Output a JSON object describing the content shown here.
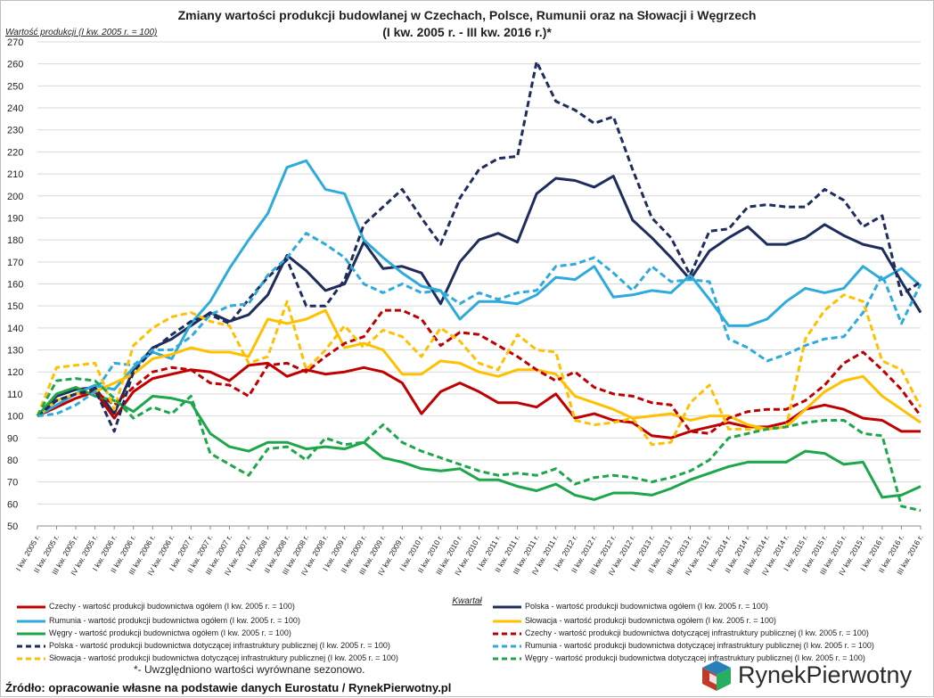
{
  "chart_data": {
    "type": "line",
    "title": "Zmiany wartości produkcji budowlanej w Czechach, Polsce, Rumunii oraz na Słowacji i Węgrzech",
    "subtitle": "(I kw. 2005 r. - III kw. 2016 r.)*",
    "ylabel": "Wartość produkcji (I kw. 2005 r. = 100)",
    "xlabel": "Kwartał",
    "ylim": [
      50,
      270
    ],
    "yticks": [
      50,
      60,
      70,
      80,
      90,
      100,
      110,
      120,
      130,
      140,
      150,
      160,
      170,
      180,
      190,
      200,
      210,
      220,
      230,
      240,
      250,
      260,
      270
    ],
    "grid": true,
    "legend_position": "bottom",
    "categories": [
      "I kw. 2005 r.",
      "II kw. 2005 r.",
      "III kw. 2005 r.",
      "IV kw. 2005 r.",
      "I kw. 2006 r.",
      "II kw. 2006 r.",
      "III kw. 2006 r.",
      "IV kw. 2006 r.",
      "I kw. 2007 r.",
      "II kw. 2007 r.",
      "III kw. 2007 r.",
      "IV kw. 2007 r.",
      "I kw. 2008 r.",
      "II kw. 2008 r.",
      "III kw. 2008 r.",
      "IV kw. 2008 r.",
      "I kw. 2009 r.",
      "II kw. 2009 r.",
      "III kw. 2009 r.",
      "IV kw. 2009 r.",
      "I kw. 2010 r.",
      "II kw. 2010 r.",
      "III kw. 2010 r.",
      "IV kw. 2010 r.",
      "I kw. 2011 r.",
      "II kw. 2011 r.",
      "III kw. 2011 r.",
      "IV kw. 2011 r.",
      "I kw. 2012 r.",
      "II kw. 2012 r.",
      "III kw. 2012 r.",
      "IV kw. 2012 r.",
      "I kw. 2013 r.",
      "II kw. 2013 r.",
      "III kw. 2013 r.",
      "IV kw. 2013 r.",
      "I kw. 2014 r.",
      "II kw. 2014 r.",
      "III kw. 2014 r.",
      "IV kw. 2014 r.",
      "I kw. 2015 r.",
      "II kw. 2015 r.",
      "III kw. 2015 r.",
      "IV kw. 2015 r.",
      "I kw. 2016 r.",
      "II kw. 2016 r.",
      "III kw. 2016 r."
    ],
    "series": [
      {
        "name": "Czechy - wartość produkcji budownictwa ogółem (I kw. 2005 r. = 100)",
        "color": "#c00000",
        "dashed": false,
        "values": [
          100,
          104,
          108,
          111,
          99,
          111,
          117,
          119,
          121,
          120,
          116,
          123,
          124,
          118,
          121,
          119,
          120,
          122,
          120,
          115,
          101,
          111,
          115,
          111,
          106,
          106,
          104,
          110,
          99,
          101,
          98,
          97,
          91,
          90,
          93,
          95,
          97,
          95,
          95,
          97,
          103,
          105,
          103,
          99,
          98,
          93,
          93
        ]
      },
      {
        "name": "Polska - wartość produkcji budownictwa ogółem (I kw. 2005 r. = 100)",
        "color": "#1f2d5c",
        "dashed": false,
        "values": [
          100,
          109,
          112,
          113,
          101,
          121,
          131,
          135,
          141,
          147,
          143,
          146,
          155,
          173,
          166,
          157,
          160,
          179,
          167,
          168,
          165,
          151,
          170,
          180,
          183,
          179,
          201,
          208,
          207,
          204,
          209,
          189,
          181,
          172,
          162,
          175,
          181,
          186,
          178,
          178,
          181,
          187,
          182,
          178,
          176,
          161,
          147
        ]
      },
      {
        "name": "Rumunia - wartość produkcji budownictwa ogółem (I kw. 2005 r. = 100)",
        "color": "#2eaadc",
        "dashed": false,
        "values": [
          100,
          105,
          110,
          114,
          112,
          122,
          129,
          126,
          142,
          152,
          167,
          180,
          192,
          213,
          216,
          203,
          201,
          180,
          172,
          165,
          159,
          157,
          144,
          152,
          152,
          151,
          155,
          163,
          162,
          168,
          154,
          155,
          157,
          156,
          164,
          153,
          141,
          141,
          144,
          152,
          158,
          156,
          158,
          168,
          162,
          167,
          159
        ]
      },
      {
        "name": "Słowacja - wartość produkcji budownictwa ogółem (I kw. 2005 r. = 100)",
        "color": "#ffc000",
        "dashed": false,
        "values": [
          100,
          107,
          110,
          111,
          115,
          119,
          126,
          128,
          131,
          129,
          129,
          127,
          144,
          142,
          144,
          148,
          131,
          133,
          130,
          119,
          119,
          125,
          124,
          120,
          118,
          121,
          121,
          119,
          109,
          106,
          103,
          99,
          100,
          101,
          98,
          100,
          100,
          96,
          94,
          95,
          103,
          111,
          116,
          118,
          109,
          103,
          97
        ]
      },
      {
        "name": "Węgry - wartość produkcji budownictwa ogółem (I kw. 2005 r. = 100)",
        "color": "#1ea64b",
        "dashed": false,
        "values": [
          100,
          110,
          113,
          109,
          107,
          102,
          109,
          108,
          106,
          92,
          86,
          84,
          88,
          88,
          85,
          86,
          85,
          88,
          81,
          79,
          76,
          75,
          76,
          71,
          71,
          68,
          66,
          69,
          64,
          62,
          65,
          65,
          64,
          67,
          71,
          74,
          77,
          79,
          79,
          79,
          84,
          83,
          78,
          79,
          63,
          64,
          68
        ]
      },
      {
        "name": "Czechy - wartość produkcji budownictwa dotyczącej infrastruktury publicznej (I kw. 2005 r. = 100)",
        "color": "#c00000",
        "dashed": true,
        "values": [
          100,
          107,
          110,
          111,
          105,
          113,
          120,
          122,
          121,
          115,
          114,
          109,
          123,
          124,
          120,
          127,
          133,
          136,
          148,
          148,
          144,
          132,
          138,
          137,
          132,
          127,
          121,
          116,
          120,
          113,
          110,
          109,
          106,
          105,
          93,
          92,
          99,
          102,
          103,
          103,
          107,
          114,
          124,
          129,
          121,
          112,
          100
        ]
      },
      {
        "name": "Polska - wartość produkcji budownictwa dotyczącej infrastruktury publicznej (I kw. 2005 r. = 100)",
        "color": "#1f2d5c",
        "dashed": true,
        "values": [
          100,
          107,
          110,
          112,
          93,
          120,
          130,
          137,
          143,
          146,
          142,
          153,
          163,
          171,
          150,
          150,
          162,
          187,
          195,
          203,
          190,
          178,
          199,
          212,
          217,
          218,
          261,
          243,
          239,
          233,
          236,
          212,
          190,
          181,
          164,
          184,
          185,
          195,
          196,
          195,
          195,
          203,
          198,
          186,
          191,
          155,
          161
        ]
      },
      {
        "name": "Rumunia - wartość produkcji budownictwa dotyczącej infrastruktury publicznej (I kw. 2005 r. = 100)",
        "color": "#2eaadc",
        "dashed": true,
        "values": [
          100,
          101,
          105,
          111,
          124,
          123,
          130,
          130,
          136,
          146,
          150,
          151,
          164,
          172,
          183,
          178,
          172,
          160,
          156,
          160,
          156,
          157,
          151,
          156,
          153,
          156,
          157,
          168,
          169,
          172,
          165,
          157,
          168,
          161,
          162,
          161,
          135,
          131,
          125,
          128,
          132,
          135,
          136,
          147,
          164,
          142,
          160
        ]
      },
      {
        "name": "Słowacja - wartość produkcji budownictwa dotyczącej infrastruktury publicznej (I kw. 2005 r. = 100)",
        "color": "#ffc000",
        "dashed": true,
        "values": [
          100,
          122,
          123,
          124,
          103,
          132,
          140,
          145,
          147,
          143,
          141,
          124,
          127,
          152,
          121,
          130,
          141,
          131,
          139,
          136,
          127,
          140,
          134,
          124,
          121,
          137,
          130,
          129,
          98,
          96,
          97,
          99,
          87,
          88,
          106,
          114,
          94,
          94,
          94,
          95,
          135,
          148,
          155,
          152,
          125,
          121,
          104
        ]
      },
      {
        "name": "Węgry - wartość produkcji budownictwa dotyczącej infrastruktury publicznej (I kw. 2005 r. = 100)",
        "color": "#1ea64b",
        "dashed": true,
        "values": [
          100,
          116,
          117,
          116,
          108,
          99,
          104,
          101,
          109,
          83,
          78,
          73,
          85,
          86,
          80,
          90,
          87,
          88,
          96,
          88,
          84,
          81,
          78,
          75,
          73,
          74,
          73,
          76,
          69,
          72,
          73,
          72,
          70,
          72,
          75,
          80,
          90,
          92,
          94,
          95,
          97,
          98,
          98,
          92,
          91,
          59,
          57
        ]
      }
    ]
  },
  "legend": [
    {
      "label": "Czechy - wartość produkcji budownictwa ogółem (I kw. 2005 r. = 100)"
    },
    {
      "label": "Polska - wartość produkcji budownictwa ogółem (I kw. 2005 r. = 100)"
    },
    {
      "label": "Rumunia - wartość produkcji budownictwa ogółem (I kw. 2005 r. = 100)"
    },
    {
      "label": "Słowacja - wartość produkcji budownictwa ogółem (I kw. 2005 r. = 100)"
    },
    {
      "label": "Węgry - wartość produkcji budownictwa ogółem (I kw. 2005 r. = 100)"
    },
    {
      "label": "Czechy - wartość produkcji budownictwa dotyczącej infrastruktury publicznej (I kw. 2005 r. = 100)"
    },
    {
      "label": "Polska - wartość produkcji budownictwa dotyczącej infrastruktury publicznej (I kw. 2005 r. = 100)"
    },
    {
      "label": "Rumunia - wartość produkcji budownictwa dotyczącej infrastruktury publicznej (I kw. 2005 r. = 100)"
    },
    {
      "label": "Słowacja - wartość produkcji budownictwa dotyczącej infrastruktury publicznej (I kw. 2005 r. = 100)"
    },
    {
      "label": "Węgry - wartość produkcji budownictwa dotyczącej infrastruktury publicznej (I kw. 2005 r. = 100)"
    }
  ],
  "footnote": "*- Uwzględniono wartości wyrównane sezonowo.",
  "source": "Źródło: opracowanie własne na podstawie danych Eurostatu / RynekPierwotny.pl",
  "logo": {
    "brand": "RynekPierwotny",
    "colors": [
      "#c0392b",
      "#27ae60",
      "#2980b9",
      "#f1c40f"
    ]
  }
}
